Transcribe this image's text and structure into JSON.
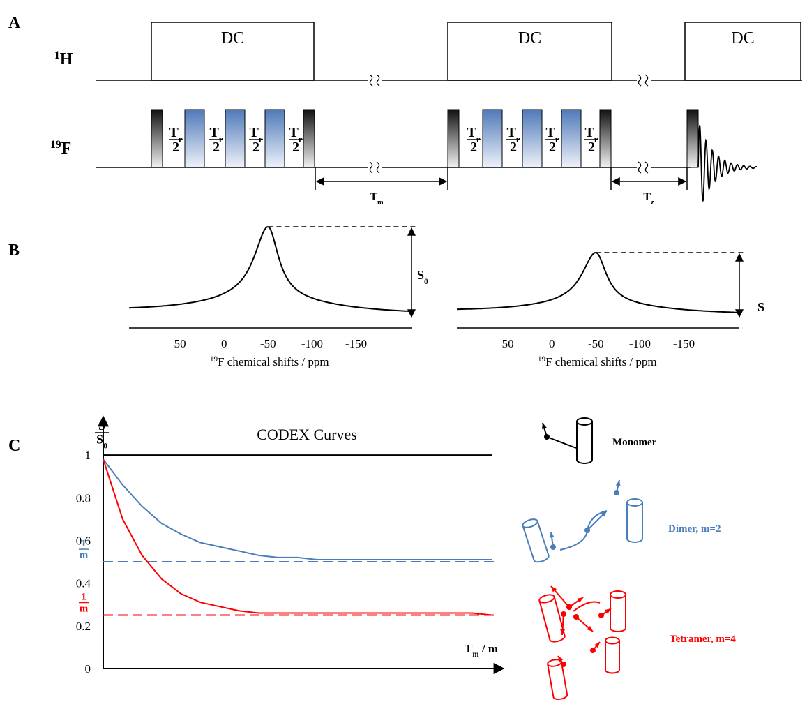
{
  "panel_a": {
    "label": "A",
    "channels": [
      {
        "sup": "1",
        "main": "H"
      },
      {
        "sup": "19",
        "main": "F"
      }
    ],
    "decoupling": "DC",
    "pulse_delay": {
      "num": "T",
      "sub": "r",
      "den": "2"
    },
    "mixing": {
      "main": "T",
      "sub": "m"
    },
    "z_filter": {
      "main": "T",
      "sub": "z"
    }
  },
  "panel_b": {
    "label": "B",
    "xlim": [
      108,
      -213
    ],
    "xticks": [
      50,
      0,
      -50,
      -100,
      -150
    ],
    "x_label": {
      "sup": "19",
      "main": "F chemical shifts / ppm"
    },
    "spectra": [
      {
        "marker": {
          "main": "S",
          "sub": "0"
        }
      },
      {
        "marker": {
          "main": "S"
        }
      }
    ]
  },
  "panel_c_label": "C",
  "chart_data": {
    "type": "line",
    "title": "CODEX Curves",
    "y_label": {
      "num": "S",
      "den": "S",
      "den_sub": "0"
    },
    "x_label": {
      "main": "T",
      "sub": "m",
      "rest": " / m"
    },
    "ylim": [
      0,
      1.18
    ],
    "yticks": [
      0,
      0.2,
      0.4,
      0.6,
      0.8,
      1
    ],
    "series": [
      {
        "name": "Monomer",
        "color": "#000000",
        "values": [
          1,
          1,
          1,
          1,
          1,
          1,
          1,
          1,
          1,
          1,
          1,
          1,
          1,
          1,
          1,
          1,
          1,
          1,
          1,
          1,
          1
        ]
      },
      {
        "name": "Dimer, m=2",
        "color": "#4a7ebb",
        "values": [
          0.98,
          0.86,
          0.76,
          0.68,
          0.63,
          0.59,
          0.57,
          0.55,
          0.53,
          0.52,
          0.52,
          0.51,
          0.51,
          0.51,
          0.51,
          0.51,
          0.51,
          0.51,
          0.51,
          0.51,
          0.51
        ]
      },
      {
        "name": "Tetramer, m=4",
        "color": "#ff0000",
        "values": [
          0.98,
          0.7,
          0.53,
          0.42,
          0.35,
          0.31,
          0.29,
          0.27,
          0.26,
          0.26,
          0.26,
          0.26,
          0.26,
          0.26,
          0.26,
          0.26,
          0.26,
          0.26,
          0.26,
          0.26,
          0.25
        ]
      }
    ],
    "reference_lines": [
      {
        "value": 0.5,
        "color": "#4a7ebb",
        "label": {
          "num": "1",
          "den": "m"
        }
      },
      {
        "value": 0.25,
        "color": "#ff0000",
        "label": {
          "num": "1",
          "den": "m"
        }
      }
    ]
  }
}
